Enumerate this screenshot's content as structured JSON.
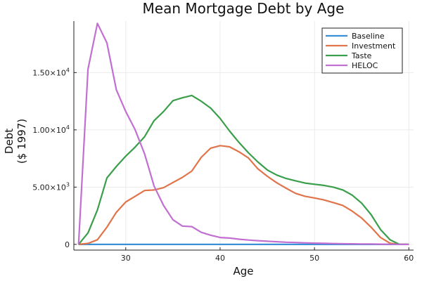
{
  "chart_data": {
    "type": "line",
    "title": "Mean Mortgage Debt by Age",
    "xlabel": "Age",
    "ylabel_lines": [
      "Debt",
      "($ 1997)"
    ],
    "xlim": [
      24.5,
      60.5
    ],
    "ylim": [
      -500,
      19500
    ],
    "xticks": [
      30,
      40,
      50,
      60
    ],
    "xtick_labels": [
      "30",
      "40",
      "50",
      "60"
    ],
    "yticks": [
      0,
      5000,
      10000,
      15000
    ],
    "ytick_labels": [
      {
        "mantissa": "0",
        "exp": ""
      },
      {
        "mantissa": "5.00×10",
        "exp": "3"
      },
      {
        "mantissa": "1.00×10",
        "exp": "4"
      },
      {
        "mantissa": "1.50×10",
        "exp": "4"
      }
    ],
    "grid": true,
    "legend_position": "top-right",
    "x": [
      25,
      26,
      27,
      28,
      29,
      30,
      31,
      32,
      33,
      34,
      35,
      36,
      37,
      38,
      39,
      40,
      41,
      42,
      43,
      44,
      45,
      46,
      47,
      48,
      49,
      50,
      51,
      52,
      53,
      54,
      55,
      56,
      57,
      58,
      59,
      60
    ],
    "series": [
      {
        "name": "Baseline",
        "color": "#3a8fd9",
        "values": [
          0,
          0,
          0,
          0,
          0,
          0,
          0,
          0,
          0,
          0,
          0,
          0,
          0,
          0,
          0,
          0,
          0,
          0,
          0,
          0,
          0,
          0,
          0,
          0,
          0,
          0,
          0,
          0,
          0,
          0,
          0,
          0,
          0,
          0,
          0,
          0
        ]
      },
      {
        "name": "Investment",
        "color": "#e1744a",
        "values": [
          0,
          80,
          400,
          1500,
          2800,
          3700,
          4200,
          4700,
          4750,
          4950,
          5400,
          5850,
          6400,
          7600,
          8400,
          8620,
          8520,
          8080,
          7550,
          6600,
          5950,
          5380,
          4900,
          4450,
          4200,
          4050,
          3880,
          3650,
          3400,
          2900,
          2300,
          1500,
          600,
          100,
          0,
          0
        ]
      },
      {
        "name": "Taste",
        "color": "#3a9e4a",
        "values": [
          0,
          1000,
          3000,
          5800,
          6800,
          7700,
          8500,
          9400,
          10800,
          11600,
          12550,
          12800,
          13000,
          12500,
          11900,
          11000,
          9900,
          8900,
          8000,
          7200,
          6500,
          6050,
          5750,
          5550,
          5350,
          5250,
          5150,
          5000,
          4750,
          4300,
          3600,
          2600,
          1300,
          400,
          0,
          0
        ]
      },
      {
        "name": "HELOC",
        "color": "#c16fd1",
        "values": [
          0,
          15300,
          19300,
          17600,
          13500,
          11600,
          10000,
          7900,
          5100,
          3400,
          2150,
          1600,
          1550,
          1050,
          800,
          600,
          550,
          450,
          380,
          320,
          270,
          230,
          190,
          160,
          130,
          110,
          90,
          70,
          55,
          45,
          35,
          25,
          15,
          10,
          5,
          0
        ]
      }
    ]
  }
}
